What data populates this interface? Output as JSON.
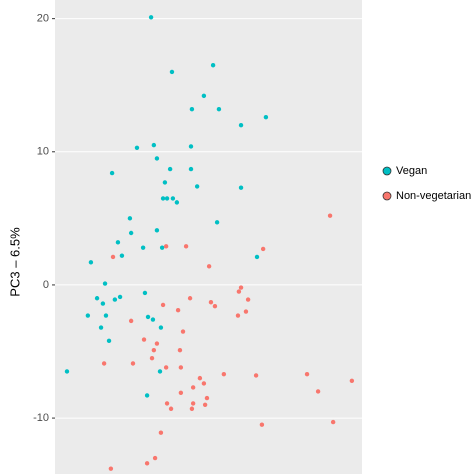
{
  "chart_data": {
    "type": "scatter",
    "y_label": "PC3 – 6.5%",
    "xlim": [
      0,
      100
    ],
    "ylim": [
      -14.2,
      21.4
    ],
    "yticks": [
      -10,
      0,
      10,
      20
    ],
    "grid": true,
    "legend": "right",
    "series": [
      {
        "name": "Vegan",
        "color": "#00BFC4",
        "x": [
          31.3,
          38.1,
          51.5,
          48.5,
          44.6,
          53.4,
          60.6,
          68.7,
          32.2,
          26.7,
          44.3,
          33.2,
          18.6,
          37.5,
          44.3,
          35.8,
          46.3,
          60.6,
          35.2,
          36.5,
          38.4,
          39.7,
          24.4,
          52.8,
          24.8,
          33.2,
          20.5,
          28.7,
          34.9,
          65.8,
          11.7,
          21.8,
          16.3,
          13.7,
          10.7,
          15.6,
          19.5,
          21.2,
          16.6,
          29.3,
          15.0,
          17.6,
          30.3,
          31.9,
          34.5,
          34.2,
          3.9,
          30.0
        ],
        "values": [
          20.1,
          16.0,
          16.5,
          14.2,
          13.2,
          13.2,
          12.0,
          12.6,
          10.5,
          10.3,
          10.4,
          9.5,
          8.4,
          8.7,
          8.7,
          7.7,
          7.4,
          7.3,
          6.5,
          6.5,
          6.5,
          6.2,
          5.0,
          4.7,
          3.9,
          4.1,
          3.2,
          2.8,
          2.8,
          2.1,
          1.7,
          2.2,
          0.1,
          -1.0,
          -2.3,
          -1.4,
          -1.1,
          -0.9,
          -2.3,
          -0.6,
          -3.2,
          -4.2,
          -2.4,
          -2.6,
          -3.2,
          -6.5,
          -6.5,
          -8.3
        ]
      },
      {
        "name": "Non-vegetarian",
        "color": "#F8766D",
        "x": [
          18.9,
          36.2,
          42.7,
          50.2,
          67.8,
          59.9,
          60.6,
          44.0,
          50.8,
          52.1,
          62.9,
          62.2,
          59.6,
          35.2,
          40.1,
          24.8,
          41.7,
          29.0,
          33.2,
          32.2,
          40.7,
          31.6,
          36.2,
          41.0,
          25.4,
          16.0,
          55.0,
          47.2,
          48.5,
          45.0,
          65.5,
          82.1,
          85.7,
          96.7,
          41.0,
          45.0,
          49.5,
          36.5,
          37.8,
          48.9,
          44.6,
          67.4,
          90.6,
          89.6,
          34.5,
          30.0,
          18.2,
          32.6
        ],
        "values": [
          2.1,
          2.9,
          2.9,
          1.4,
          2.7,
          -0.5,
          -0.2,
          -1.0,
          -1.3,
          -1.6,
          -1.1,
          -2.0,
          -2.3,
          -1.5,
          -1.9,
          -2.7,
          -3.5,
          -4.1,
          -4.4,
          -4.9,
          -4.9,
          -5.5,
          -6.2,
          -6.2,
          -5.9,
          -5.9,
          -6.7,
          -7.0,
          -7.4,
          -7.7,
          -6.8,
          -6.7,
          -8.0,
          -7.2,
          -8.1,
          -8.9,
          -8.5,
          -8.9,
          -9.3,
          -9.0,
          -9.3,
          -10.5,
          -10.3,
          5.2,
          -11.1,
          -13.4,
          -13.8,
          -13.0
        ]
      }
    ]
  }
}
